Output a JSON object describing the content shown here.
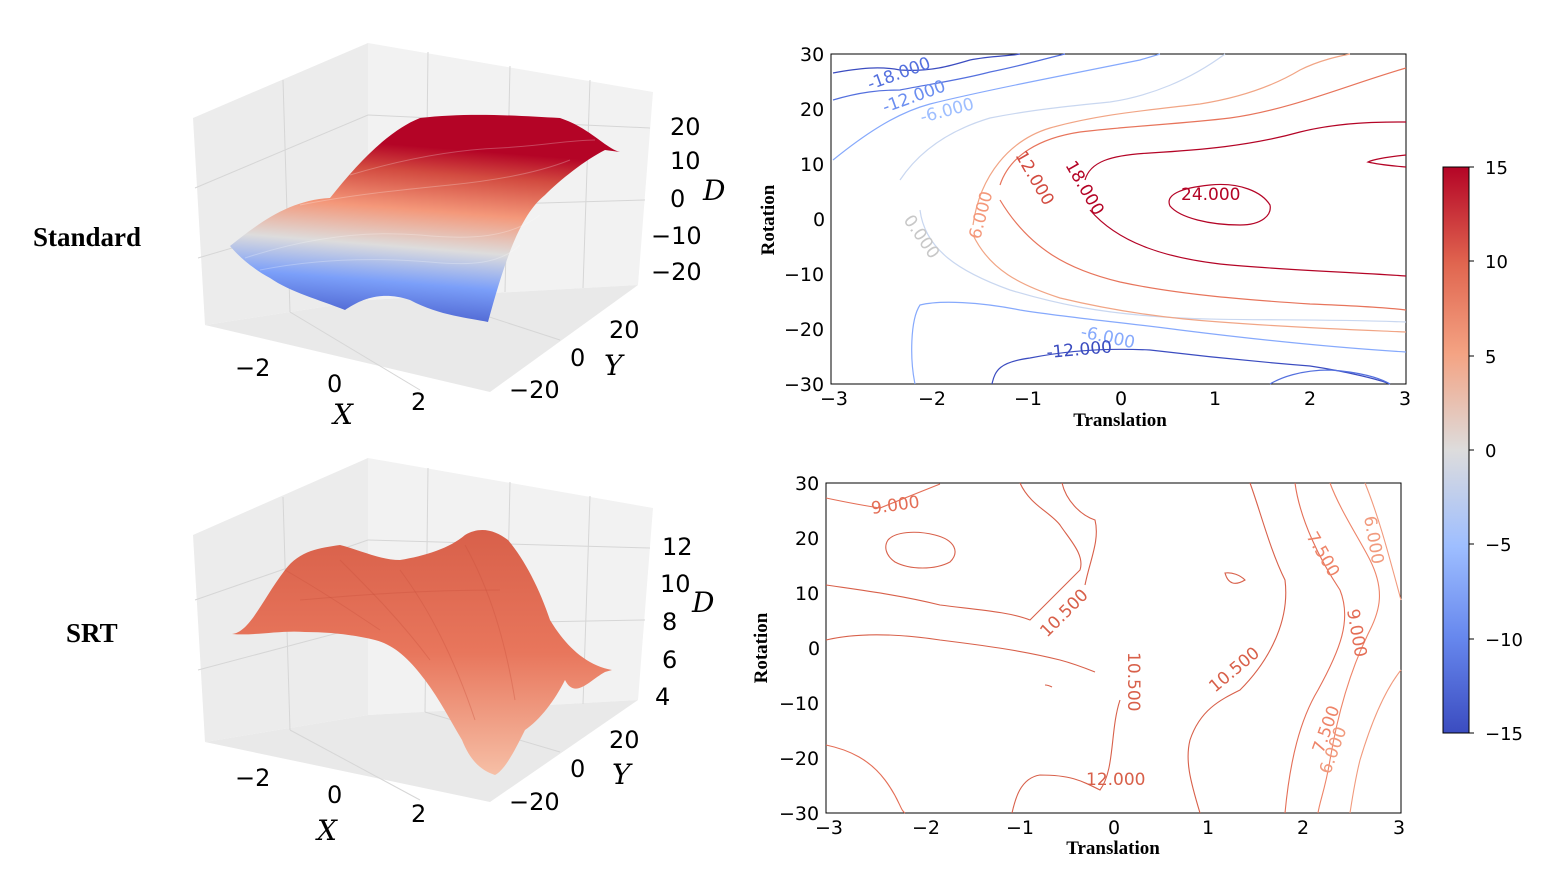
{
  "row_labels": {
    "standard": "Standard",
    "srt": "SRT"
  },
  "colorbar": {
    "cmap": "coolwarm",
    "range": [
      -15,
      15
    ],
    "ticks": [
      "15",
      "10",
      "5",
      "0",
      "−5",
      "−10",
      "−15"
    ]
  },
  "chart_data": [
    {
      "type": "surface3d",
      "panel": "Standard",
      "xlabel": "X",
      "ylabel": "Y",
      "zlabel": "D",
      "x_ticks": [
        "−2",
        "0",
        "2"
      ],
      "y_ticks": [
        "20",
        "0",
        "−20"
      ],
      "z_ticks": [
        "20",
        "10",
        "0",
        "−10",
        "−20"
      ],
      "xlim": [
        -3,
        3
      ],
      "ylim": [
        -30,
        30
      ],
      "zlim": [
        -25,
        25
      ],
      "description_values": {
        "z_min_approx": -20,
        "z_max_approx": 22
      }
    },
    {
      "type": "contour",
      "panel": "Standard",
      "xlabel": "Translation",
      "ylabel": "Rotation",
      "x_ticks": [
        "−3",
        "−2",
        "−1",
        "0",
        "1",
        "2",
        "3"
      ],
      "y_ticks": [
        "30",
        "20",
        "10",
        "0",
        "−10",
        "−20",
        "−30"
      ],
      "xlim": [
        -3,
        3
      ],
      "ylim": [
        -30,
        30
      ],
      "level_labels": [
        {
          "text": "-18.000",
          "level": -18
        },
        {
          "text": "-12.000",
          "level": -12
        },
        {
          "text": "-6.000",
          "level": -6
        },
        {
          "text": "0.000",
          "level": 0
        },
        {
          "text": "6.000",
          "level": 6
        },
        {
          "text": "12.000",
          "level": 12
        },
        {
          "text": "18.000",
          "level": 18
        },
        {
          "text": "24.000",
          "level": 24
        },
        {
          "text": "-6.000",
          "level": -6
        },
        {
          "text": "-12.000",
          "level": -12
        }
      ]
    },
    {
      "type": "surface3d",
      "panel": "SRT",
      "xlabel": "X",
      "ylabel": "Y",
      "zlabel": "D",
      "x_ticks": [
        "−2",
        "0",
        "2"
      ],
      "y_ticks": [
        "20",
        "0",
        "−20"
      ],
      "z_ticks": [
        "12",
        "10",
        "8",
        "6",
        "4"
      ],
      "xlim": [
        -3,
        3
      ],
      "ylim": [
        -30,
        30
      ],
      "zlim": [
        3.5,
        13.5
      ]
    },
    {
      "type": "contour",
      "panel": "SRT",
      "xlabel": "Translation",
      "ylabel": "Rotation",
      "x_ticks": [
        "−3",
        "−2",
        "−1",
        "0",
        "1",
        "2",
        "3"
      ],
      "y_ticks": [
        "30",
        "20",
        "10",
        "0",
        "−10",
        "−20",
        "−30"
      ],
      "xlim": [
        -3,
        3
      ],
      "ylim": [
        -30,
        30
      ],
      "level_labels": [
        {
          "text": "9.000",
          "level": 9
        },
        {
          "text": "10.500",
          "level": 10.5
        },
        {
          "text": "10.500",
          "level": 10.5
        },
        {
          "text": "10.500",
          "level": 10.5
        },
        {
          "text": "12.000",
          "level": 12
        },
        {
          "text": "7.500",
          "level": 7.5
        },
        {
          "text": "9.000",
          "level": 9
        },
        {
          "text": "6.000",
          "level": 6
        },
        {
          "text": "7.500",
          "level": 7.5
        },
        {
          "text": "6.000",
          "level": 6
        }
      ]
    }
  ]
}
